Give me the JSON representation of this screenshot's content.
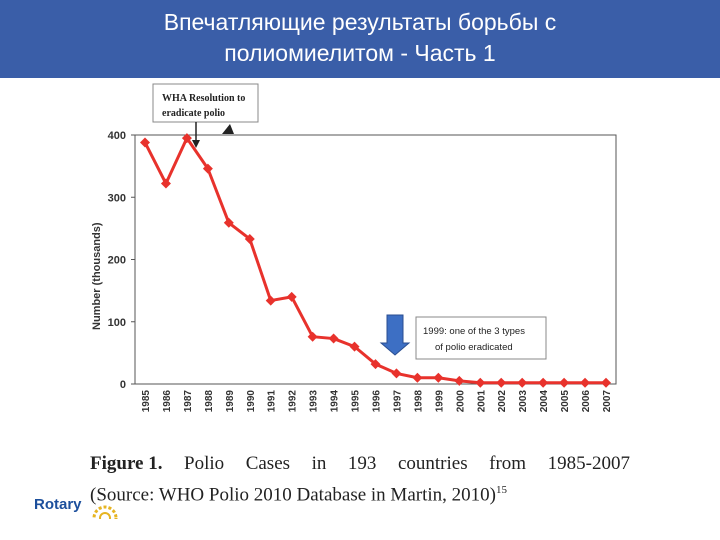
{
  "header": {
    "title_line1": "Впечатляющие результаты борьбы с",
    "title_line2": "полиомиелитом - Часть 1"
  },
  "chart_data": {
    "type": "line",
    "x": [
      "1985",
      "1986",
      "1987",
      "1988",
      "1989",
      "1990",
      "1991",
      "1992",
      "1993",
      "1994",
      "1995",
      "1996",
      "1997",
      "1998",
      "1999",
      "2000",
      "2001",
      "2002",
      "2003",
      "2004",
      "2005",
      "2006",
      "2007"
    ],
    "series": [
      {
        "values": [
          388,
          322,
          395,
          346,
          259,
          233,
          134,
          140,
          76,
          73,
          60,
          32,
          17,
          10,
          10,
          5,
          2,
          2,
          2,
          2,
          2,
          2,
          2
        ],
        "color": "#e8322c"
      }
    ],
    "ylabel": "Number (thousands)",
    "yticks": [
      "0",
      "100",
      "200",
      "300",
      "400"
    ],
    "ylim": [
      0,
      400
    ],
    "annotations": [
      {
        "text_line1": "WHA Resolution to",
        "text_line2": "eradicate polio",
        "x": "1987"
      },
      {
        "text_line1": "1999: one of the 3 types",
        "text_line2": "of polio eradicated",
        "x": "1996"
      }
    ],
    "marker": "diamond",
    "grid": false
  },
  "caption": {
    "figure_label": "Figure 1.",
    "words": [
      "Polio",
      "Cases",
      "in",
      "193",
      "countries",
      "from",
      "1985-2007"
    ],
    "line2": "(Source: WHO Polio 2010 Database in Martin, 2010)",
    "footnote": "15"
  },
  "logo": {
    "text": "Rotary"
  },
  "colors": {
    "banner": "#3a5ea8",
    "series": "#e8322c",
    "arrow": "#3d6fc4"
  }
}
